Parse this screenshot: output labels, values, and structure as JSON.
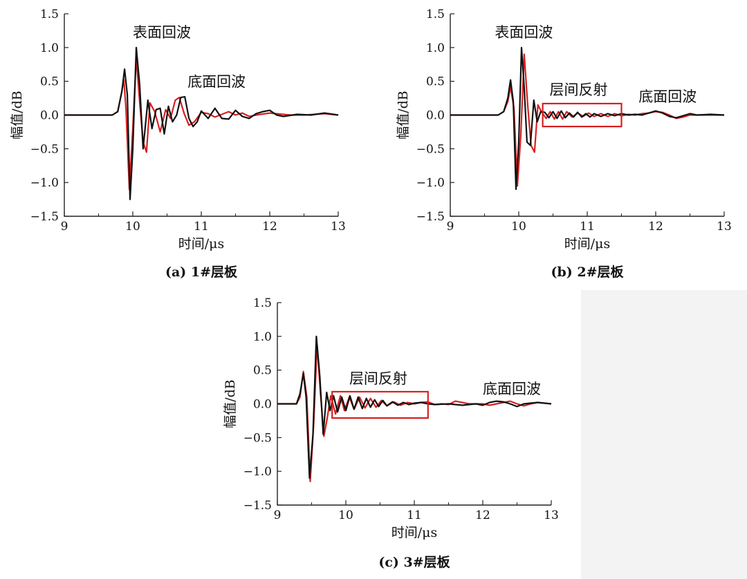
{
  "chart_data": [
    {
      "type": "line",
      "caption": "(a) 1#层板",
      "xlabel": "时间/μs",
      "ylabel": "幅值/dB",
      "xlim": [
        9,
        13
      ],
      "ylim": [
        -1.5,
        1.5
      ],
      "xticks": [
        "9",
        "10",
        "11",
        "12",
        "13"
      ],
      "yticks": [
        "1.5",
        "1.0",
        "0.5",
        "0.0",
        "−0.5",
        "−1.0",
        "−1.5"
      ],
      "annotations": [
        {
          "text": "表面回波",
          "x": 10.0,
          "y": 1.15
        },
        {
          "text": "底面回波",
          "x": 10.8,
          "y": 0.42
        }
      ],
      "boxes": [],
      "series": [
        {
          "color": "#d62020",
          "x": [
            9.0,
            9.7,
            9.78,
            9.83,
            9.87,
            9.9,
            9.95,
            10.0,
            10.05,
            10.1,
            10.15,
            10.2,
            10.25,
            10.32,
            10.4,
            10.48,
            10.55,
            10.62,
            10.68,
            10.75,
            10.82,
            10.9,
            11.0,
            11.1,
            11.2,
            11.3,
            11.4,
            11.5,
            11.6,
            11.7,
            11.8,
            12.0,
            12.3,
            12.5,
            12.8,
            13.0
          ],
          "y": [
            0.0,
            0.0,
            0.05,
            0.3,
            0.52,
            0.1,
            -1.1,
            -0.2,
            0.85,
            0.2,
            -0.4,
            -0.55,
            0.18,
            0.05,
            -0.25,
            0.08,
            -0.05,
            0.22,
            0.26,
            0.02,
            -0.15,
            -0.1,
            0.04,
            0.02,
            -0.03,
            0.01,
            0.05,
            0.0,
            0.03,
            -0.02,
            0.0,
            0.03,
            0.0,
            0.0,
            0.02,
            0.0
          ]
        },
        {
          "color": "#111111",
          "x": [
            9.0,
            9.7,
            9.78,
            9.84,
            9.88,
            9.92,
            9.96,
            10.0,
            10.05,
            10.1,
            10.15,
            10.22,
            10.28,
            10.34,
            10.4,
            10.46,
            10.52,
            10.58,
            10.64,
            10.7,
            10.76,
            10.82,
            10.88,
            10.94,
            11.0,
            11.1,
            11.2,
            11.3,
            11.4,
            11.5,
            11.6,
            11.7,
            11.8,
            11.9,
            12.0,
            12.1,
            12.2,
            12.4,
            12.6,
            12.8,
            13.0
          ],
          "y": [
            0.0,
            0.0,
            0.05,
            0.35,
            0.68,
            0.3,
            -1.25,
            -0.5,
            1.0,
            0.45,
            -0.5,
            0.22,
            -0.2,
            0.08,
            0.1,
            -0.28,
            0.13,
            -0.1,
            0.0,
            0.26,
            0.27,
            -0.05,
            -0.17,
            -0.1,
            0.06,
            -0.05,
            0.1,
            -0.05,
            -0.06,
            0.07,
            -0.02,
            -0.05,
            0.02,
            0.05,
            0.07,
            0.0,
            -0.02,
            0.01,
            0.0,
            0.03,
            0.0
          ]
        }
      ]
    },
    {
      "type": "line",
      "caption": "(b) 2#层板",
      "xlabel": "时间/μs",
      "ylabel": "幅值/dB",
      "xlim": [
        9,
        13
      ],
      "ylim": [
        -1.5,
        1.5
      ],
      "xticks": [
        "9",
        "10",
        "11",
        "12",
        "13"
      ],
      "yticks": [
        "1.5",
        "1.0",
        "0.5",
        "0.0",
        "−0.5",
        "−1.0",
        "−1.5"
      ],
      "annotations": [
        {
          "text": "表面回波",
          "x": 9.65,
          "y": 1.15
        },
        {
          "text": "层间反射",
          "x": 10.45,
          "y": 0.3
        },
        {
          "text": "底面回波",
          "x": 11.75,
          "y": 0.2
        }
      ],
      "boxes": [
        {
          "x0": 10.35,
          "x1": 11.5,
          "y0": -0.17,
          "y1": 0.17
        }
      ],
      "series": [
        {
          "color": "#d62020",
          "x": [
            9.0,
            9.7,
            9.78,
            9.84,
            9.88,
            9.93,
            9.98,
            10.03,
            10.08,
            10.13,
            10.18,
            10.23,
            10.28,
            10.33,
            10.4,
            10.46,
            10.52,
            10.58,
            10.64,
            10.7,
            10.78,
            10.86,
            10.94,
            11.02,
            11.1,
            11.2,
            11.3,
            11.4,
            11.5,
            11.6,
            11.7,
            11.8,
            11.9,
            12.0,
            12.1,
            12.2,
            12.3,
            12.4,
            12.5,
            12.7,
            13.0
          ],
          "y": [
            0.0,
            0.0,
            0.05,
            0.2,
            0.42,
            0.1,
            -1.05,
            -0.3,
            0.9,
            0.15,
            -0.45,
            -0.55,
            0.15,
            0.05,
            -0.05,
            0.05,
            -0.06,
            0.05,
            -0.06,
            0.05,
            -0.03,
            0.03,
            -0.02,
            0.03,
            -0.02,
            0.02,
            -0.02,
            0.02,
            -0.01,
            0.01,
            0.0,
            0.02,
            0.03,
            0.05,
            0.04,
            0.0,
            -0.05,
            -0.03,
            0.0,
            0.0,
            0.0
          ]
        },
        {
          "color": "#111111",
          "x": [
            9.0,
            9.7,
            9.78,
            9.84,
            9.88,
            9.92,
            9.96,
            10.0,
            10.04,
            10.08,
            10.12,
            10.17,
            10.22,
            10.27,
            10.32,
            10.38,
            10.44,
            10.5,
            10.56,
            10.62,
            10.68,
            10.74,
            10.8,
            10.86,
            10.92,
            10.98,
            11.04,
            11.1,
            11.2,
            11.3,
            11.4,
            11.5,
            11.6,
            11.7,
            11.8,
            11.9,
            12.0,
            12.1,
            12.2,
            12.3,
            12.4,
            12.5,
            12.6,
            12.8,
            13.0
          ],
          "y": [
            0.0,
            0.0,
            0.05,
            0.25,
            0.52,
            0.2,
            -1.1,
            -0.4,
            1.0,
            0.4,
            -0.4,
            -0.45,
            0.22,
            -0.1,
            0.05,
            0.04,
            -0.04,
            0.05,
            -0.05,
            0.06,
            -0.04,
            0.03,
            -0.03,
            0.04,
            -0.03,
            0.02,
            -0.03,
            0.02,
            -0.02,
            0.02,
            -0.01,
            0.02,
            0.0,
            0.01,
            0.0,
            0.03,
            0.06,
            0.03,
            -0.02,
            -0.04,
            -0.01,
            0.02,
            0.0,
            0.01,
            0.0
          ]
        }
      ]
    },
    {
      "type": "line",
      "caption": "(c) 3#层板",
      "xlabel": "时间/μs",
      "ylabel": "幅值/dB",
      "xlim": [
        9,
        13
      ],
      "ylim": [
        -1.5,
        1.5
      ],
      "xticks": [
        "9",
        "10",
        "11",
        "12",
        "13"
      ],
      "yticks": [
        "1.5",
        "1.0",
        "0.5",
        "0.0",
        "−0.5",
        "−1.0",
        "−1.5"
      ],
      "annotations": [
        {
          "text": "层间反射",
          "x": 10.05,
          "y": 0.3
        },
        {
          "text": "底面回波",
          "x": 12.0,
          "y": 0.15
        }
      ],
      "boxes": [
        {
          "x0": 9.8,
          "x1": 11.2,
          "y0": -0.21,
          "y1": 0.18
        }
      ],
      "series": [
        {
          "color": "#d62020",
          "x": [
            9.0,
            9.28,
            9.33,
            9.38,
            9.43,
            9.48,
            9.53,
            9.58,
            9.63,
            9.68,
            9.73,
            9.78,
            9.85,
            9.92,
            9.98,
            10.05,
            10.12,
            10.2,
            10.28,
            10.36,
            10.44,
            10.52,
            10.6,
            10.7,
            10.8,
            10.9,
            11.0,
            11.1,
            11.2,
            11.3,
            11.4,
            11.5,
            11.6,
            11.8,
            12.0,
            12.1,
            12.2,
            12.3,
            12.4,
            12.5,
            12.6,
            12.7,
            12.8,
            12.9,
            13.0
          ],
          "y": [
            0.0,
            0.0,
            0.1,
            0.48,
            0.1,
            -1.15,
            -0.3,
            0.88,
            0.15,
            -0.48,
            -0.2,
            0.12,
            -0.15,
            0.12,
            -0.1,
            0.1,
            -0.08,
            0.1,
            -0.06,
            0.08,
            -0.05,
            0.05,
            -0.03,
            0.03,
            -0.02,
            0.02,
            0.0,
            0.02,
            0.03,
            -0.01,
            0.0,
            -0.01,
            0.04,
            0.0,
            0.0,
            -0.02,
            0.0,
            0.02,
            0.04,
            0.0,
            -0.03,
            0.0,
            0.02,
            0.01,
            0.0
          ]
        },
        {
          "color": "#111111",
          "x": [
            9.0,
            9.28,
            9.33,
            9.38,
            9.42,
            9.47,
            9.52,
            9.57,
            9.62,
            9.67,
            9.72,
            9.77,
            9.82,
            9.88,
            9.94,
            10.0,
            10.06,
            10.12,
            10.18,
            10.24,
            10.3,
            10.36,
            10.42,
            10.48,
            10.54,
            10.6,
            10.68,
            10.76,
            10.84,
            10.92,
            11.0,
            11.1,
            11.2,
            11.3,
            11.5,
            11.7,
            11.9,
            12.0,
            12.1,
            12.2,
            12.3,
            12.4,
            12.5,
            12.6,
            12.8,
            13.0
          ],
          "y": [
            0.0,
            0.0,
            0.15,
            0.45,
            0.1,
            -1.1,
            -0.45,
            1.0,
            0.4,
            -0.45,
            0.17,
            -0.1,
            0.12,
            -0.12,
            0.1,
            -0.1,
            0.12,
            -0.08,
            0.1,
            -0.07,
            0.08,
            -0.05,
            0.06,
            -0.04,
            0.05,
            -0.03,
            0.03,
            -0.02,
            0.02,
            -0.01,
            0.01,
            0.02,
            0.0,
            -0.01,
            0.0,
            -0.02,
            0.0,
            -0.02,
            0.02,
            0.04,
            0.03,
            0.0,
            -0.04,
            0.0,
            0.02,
            0.0
          ]
        }
      ]
    }
  ]
}
